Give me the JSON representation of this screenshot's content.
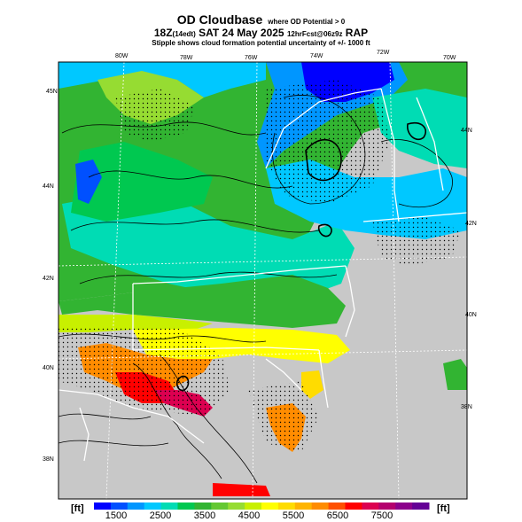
{
  "title": {
    "main": "OD Cloudbase",
    "condition": "where OD Potential > 0",
    "run_time": "18Z",
    "run_sub": "(14edt)",
    "date": "SAT 24 May 2025",
    "forecast": "12hrFcst@06z",
    "forecast_sub": "9z",
    "model": "RAP",
    "stipple_note": "Stipple shows cloud formation potential uncertainty of +/- 1000 ft"
  },
  "map": {
    "top_lon_labels": [
      "80W",
      "78W",
      "76W",
      "74W",
      "72W",
      "70W"
    ],
    "left_lat_labels": [
      "45N",
      "44N",
      "42N",
      "40N",
      "38N"
    ],
    "right_lat_labels": [
      "44N",
      "42N",
      "40N",
      "38N"
    ],
    "colors": {
      "no_data_gray": "#c8c8c8",
      "state_border": "#ffffff",
      "contour": "#000000"
    }
  },
  "colorbar": {
    "unit_left": "[ft]",
    "unit_right": "[ft]",
    "tick_labels": [
      "1500",
      "2500",
      "3500",
      "4500",
      "5500",
      "6500",
      "7500"
    ],
    "colors": [
      "#0000ff",
      "#0050ff",
      "#0096ff",
      "#00c8ff",
      "#00dcb4",
      "#00c850",
      "#32b432",
      "#64c832",
      "#96dc32",
      "#c8f000",
      "#ffff00",
      "#ffdc00",
      "#ffb400",
      "#ff8c00",
      "#ff5000",
      "#ff0000",
      "#dc0050",
      "#b4006e",
      "#8c008c",
      "#640096"
    ]
  }
}
